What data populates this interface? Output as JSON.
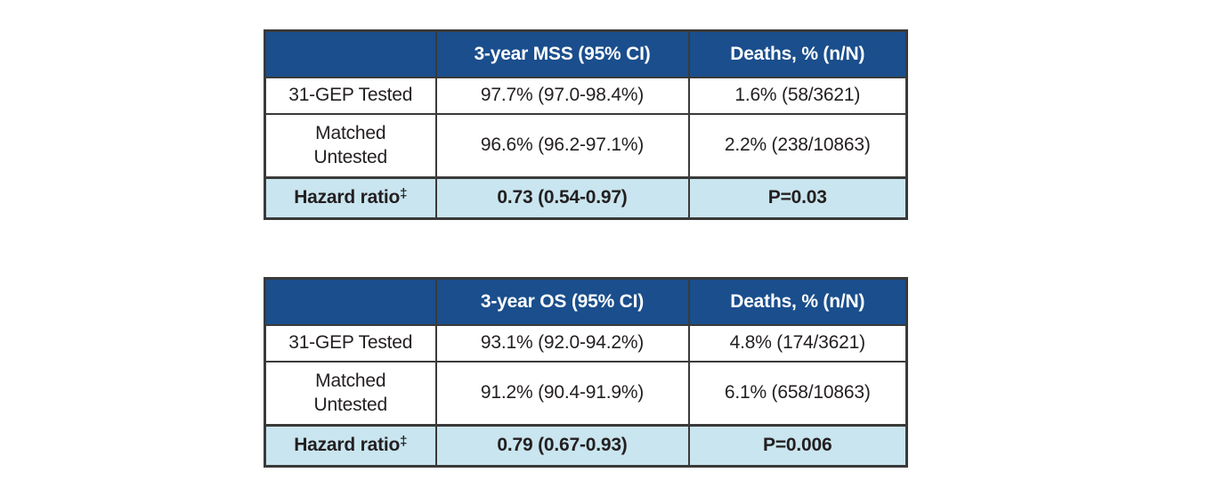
{
  "colors": {
    "header_bg": "#1a4e8c",
    "header_text": "#ffffff",
    "hazard_row_bg": "#c9e5ef",
    "body_text": "#231f20",
    "border": "#3a3a3a",
    "page_bg": "#ffffff"
  },
  "tables": [
    {
      "title_semantic": "3-year melanoma-specific survival outcomes",
      "header": {
        "col1": "",
        "col2": "3-year MSS (95% CI)",
        "col3": "Deaths, % (n/N)"
      },
      "rows": [
        {
          "label": "31-GEP Tested",
          "outcome": "97.7% (97.0-98.4%)",
          "deaths": "1.6% (58/3621)"
        },
        {
          "label": "Matched\nUntested",
          "outcome": "96.6% (96.2-97.1%)",
          "deaths": "2.2% (238/10863)"
        }
      ],
      "footer": {
        "label": "Hazard ratio",
        "sup": "‡",
        "outcome": "0.73 (0.54-0.97)",
        "p_value": "P=0.03"
      }
    },
    {
      "title_semantic": "3-year overall survival outcomes",
      "header": {
        "col1": "",
        "col2": "3-year OS (95% CI)",
        "col3": "Deaths, % (n/N)"
      },
      "rows": [
        {
          "label": "31-GEP Tested",
          "outcome": "93.1% (92.0-94.2%)",
          "deaths": "4.8% (174/3621)"
        },
        {
          "label": "Matched\nUntested",
          "outcome": "91.2% (90.4-91.9%)",
          "deaths": "6.1% (658/10863)"
        }
      ],
      "footer": {
        "label": "Hazard ratio",
        "sup": "‡",
        "outcome": "0.79 (0.67-0.93)",
        "p_value": "P=0.006"
      }
    }
  ]
}
